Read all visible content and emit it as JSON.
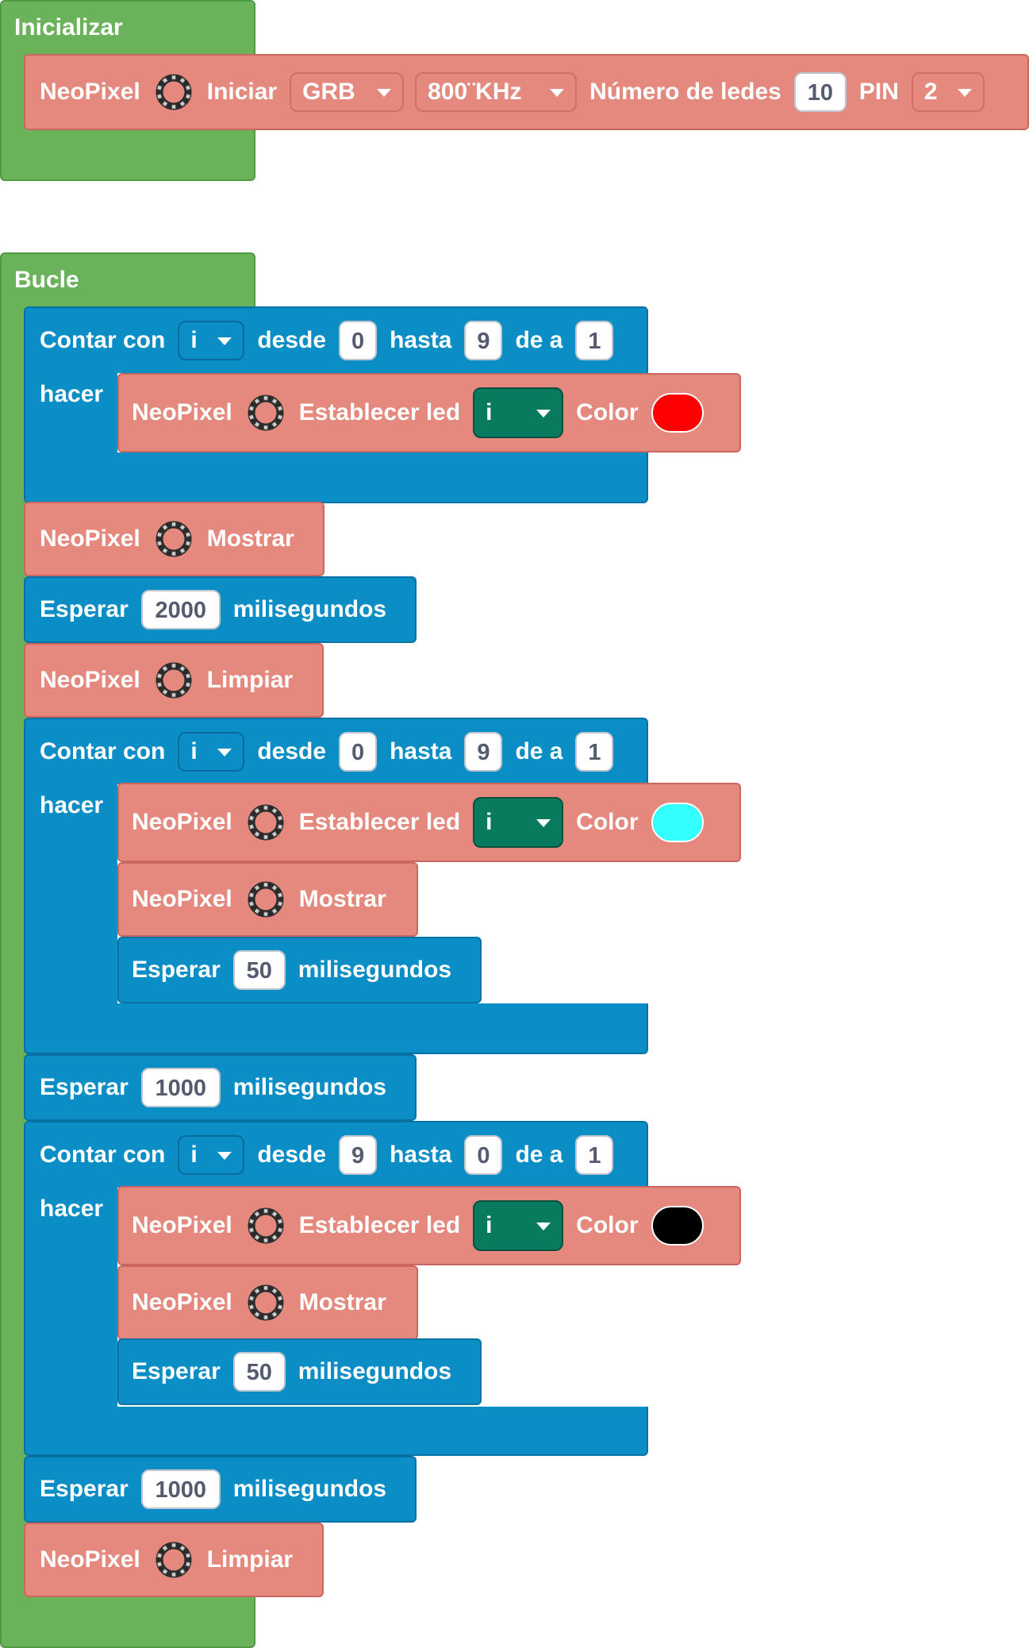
{
  "init": {
    "label": "Inicializar",
    "neopixel_init": {
      "name": "NeoPixel",
      "icon": "neopixel-ring-icon",
      "action": "Iniciar",
      "color_order": "GRB",
      "frequency": "800¨KHz",
      "num_leds_label": "Número de ledes",
      "num_leds": "10",
      "pin_label": "PIN",
      "pin": "2"
    }
  },
  "loop": {
    "label": "Bucle",
    "for1": {
      "label": "Contar con",
      "var": "i",
      "from_label": "desde",
      "from": "0",
      "to_label": "hasta",
      "to": "9",
      "step_label": "de a",
      "step": "1",
      "do_label": "hacer",
      "set_led": {
        "name": "NeoPixel",
        "action": "Establecer led",
        "var": "i",
        "color_label": "Color",
        "color": "#ff0000"
      }
    },
    "show1": {
      "name": "NeoPixel",
      "action": "Mostrar"
    },
    "wait1": {
      "label": "Esperar",
      "value": "2000",
      "unit": "milisegundos"
    },
    "clear1": {
      "name": "NeoPixel",
      "action": "Limpiar"
    },
    "for2": {
      "label": "Contar con",
      "var": "i",
      "from_label": "desde",
      "from": "0",
      "to_label": "hasta",
      "to": "9",
      "step_label": "de a",
      "step": "1",
      "do_label": "hacer",
      "set_led": {
        "name": "NeoPixel",
        "action": "Establecer led",
        "var": "i",
        "color_label": "Color",
        "color": "#33ffff"
      },
      "show": {
        "name": "NeoPixel",
        "action": "Mostrar"
      },
      "wait": {
        "label": "Esperar",
        "value": "50",
        "unit": "milisegundos"
      }
    },
    "wait2": {
      "label": "Esperar",
      "value": "1000",
      "unit": "milisegundos"
    },
    "for3": {
      "label": "Contar con",
      "var": "i",
      "from_label": "desde",
      "from": "9",
      "to_label": "hasta",
      "to": "0",
      "step_label": "de a",
      "step": "1",
      "do_label": "hacer",
      "set_led": {
        "name": "NeoPixel",
        "action": "Establecer led",
        "var": "i",
        "color_label": "Color",
        "color": "#000000"
      },
      "show": {
        "name": "NeoPixel",
        "action": "Mostrar"
      },
      "wait": {
        "label": "Esperar",
        "value": "50",
        "unit": "milisegundos"
      }
    },
    "wait3": {
      "label": "Esperar",
      "value": "1000",
      "unit": "milisegundos"
    },
    "clear2": {
      "name": "NeoPixel",
      "action": "Limpiar"
    }
  },
  "colors": {
    "events": "#6ab35a",
    "control": "#0b8ec6",
    "neopixel": "#e5887e",
    "variable": "#087a5d"
  }
}
